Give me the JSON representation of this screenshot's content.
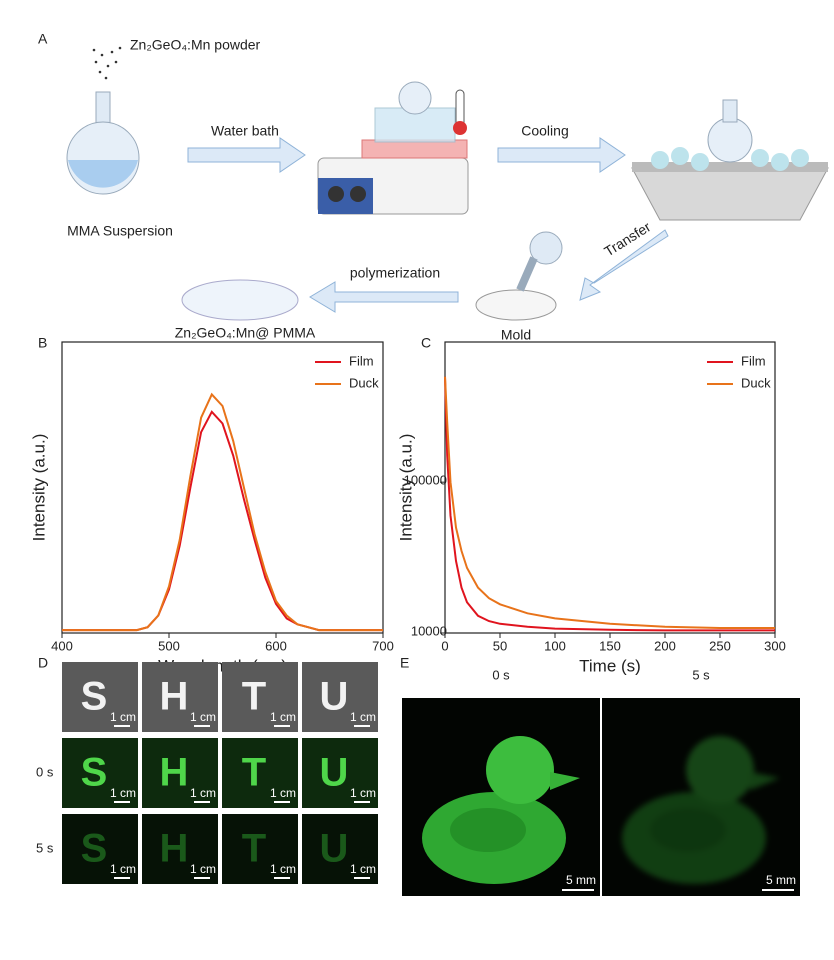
{
  "panel_a": {
    "label": "A",
    "powder": "Zn₂GeO₄:Mn powder",
    "suspension": "MMA Suspersion",
    "water_bath": "Water bath",
    "cooling": "Cooling",
    "transfer": "Transfer",
    "polymerization": "polymerization",
    "mold": "Mold",
    "product": "Zn₂GeO₄:Mn@ PMMA"
  },
  "chart_data": [
    {
      "type": "line",
      "label": "B",
      "x_label": "Wavelength (nm)",
      "y_label": "Intensity (a.u.)",
      "x": [
        400,
        410,
        420,
        430,
        440,
        450,
        460,
        470,
        480,
        490,
        500,
        510,
        520,
        530,
        540,
        550,
        560,
        570,
        580,
        590,
        600,
        610,
        620,
        630,
        640,
        650,
        660,
        670,
        680,
        690,
        700
      ],
      "series": [
        {
          "name": "Film",
          "color": "#e0141e",
          "values": [
            0.01,
            0.01,
            0.01,
            0.01,
            0.01,
            0.01,
            0.01,
            0.01,
            0.02,
            0.06,
            0.15,
            0.3,
            0.5,
            0.69,
            0.76,
            0.72,
            0.61,
            0.46,
            0.32,
            0.19,
            0.1,
            0.05,
            0.03,
            0.02,
            0.01,
            0.01,
            0.01,
            0.01,
            0.01,
            0.01,
            0.01
          ]
        },
        {
          "name": "Duck",
          "color": "#e8731a",
          "values": [
            0.01,
            0.01,
            0.01,
            0.01,
            0.01,
            0.01,
            0.01,
            0.01,
            0.02,
            0.06,
            0.16,
            0.32,
            0.54,
            0.74,
            0.82,
            0.78,
            0.66,
            0.5,
            0.34,
            0.21,
            0.11,
            0.06,
            0.03,
            0.02,
            0.01,
            0.01,
            0.01,
            0.01,
            0.01,
            0.01,
            0.01
          ]
        }
      ],
      "xlim": [
        400,
        700
      ],
      "xticks": [
        400,
        500,
        600,
        700
      ],
      "ylim": [
        0,
        1
      ],
      "legend": "upper right"
    },
    {
      "type": "line",
      "label": "C",
      "x_label": "Time (s)",
      "y_label": "Intensity (a.u.)",
      "ylog": true,
      "x": [
        0,
        2,
        5,
        10,
        15,
        20,
        30,
        40,
        50,
        75,
        100,
        150,
        200,
        250,
        300
      ],
      "series": [
        {
          "name": "Film",
          "color": "#e0141e",
          "values": [
            500000,
            150000,
            60000,
            30000,
            20000,
            16000,
            13000,
            12000,
            11500,
            11000,
            10700,
            10500,
            10400,
            10400,
            10400
          ]
        },
        {
          "name": "Duck",
          "color": "#e8731a",
          "values": [
            500000,
            250000,
            100000,
            50000,
            35000,
            27000,
            20000,
            17000,
            15500,
            13500,
            12500,
            11500,
            11000,
            10800,
            10800
          ]
        }
      ],
      "xlim": [
        0,
        300
      ],
      "xticks": [
        0,
        50,
        100,
        150,
        200,
        250,
        300
      ],
      "ylim": [
        10000,
        850000
      ],
      "yticks": [
        10000,
        100000
      ],
      "legend": "upper right"
    }
  ],
  "panel_d": {
    "label": "D",
    "letters": [
      "S",
      "H",
      "T",
      "U"
    ],
    "rows": [
      "0 s",
      "5 s"
    ],
    "scale_bar": "1 cm"
  },
  "panel_e": {
    "label": "E",
    "frames": [
      "0 s",
      "5 s"
    ],
    "scale_bar": "5 mm"
  }
}
